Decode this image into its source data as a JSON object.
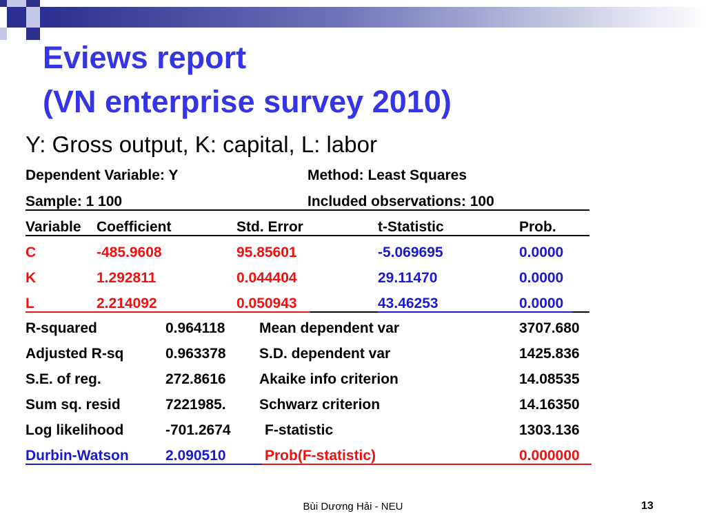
{
  "header": {
    "title_line1": "Eviews report",
    "title_line2": "(VN enterprise survey 2010)",
    "colors": {
      "title": "#3535e6",
      "bar_dark": "#2b2f8f",
      "square_light": "#c5c8e6"
    }
  },
  "subtitle": "Y: Gross output, K: capital, L: labor",
  "info": {
    "dependent_variable": "Dependent Variable: Y",
    "method": "Method: Least Squares",
    "sample": "Sample: 1 100",
    "included": "Included observations: 100"
  },
  "coef_table": {
    "headers": [
      "Variable",
      "Coefficient",
      "Std. Error",
      "t-Statistic",
      "Prob."
    ],
    "rows": [
      [
        "C",
        "-485.9608",
        "95.85601",
        "-5.069695",
        "0.0000"
      ],
      [
        "K",
        "1.292811",
        "0.044404",
        "29.11470",
        "0.0000"
      ],
      [
        "L",
        "2.214092",
        "0.050943",
        "43.46253",
        "0.0000"
      ]
    ],
    "row_color": "#ee1111"
  },
  "stats": [
    {
      "label": "R-squared",
      "value": "0.964118",
      "label2": "Mean dependent var",
      "value2": "3707.680"
    },
    {
      "label": "Adjusted R-sq",
      "value": "0.963378",
      "label2": "S.D. dependent var",
      "value2": "1425.836"
    },
    {
      "label": "S.E. of reg.",
      "value": "272.8616",
      "label2": "Akaike info criterion",
      "value2": "14.08535"
    },
    {
      "label": "Sum sq. resid",
      "value": "7221985.",
      "label2": "Schwarz criterion",
      "value2": "14.16350"
    },
    {
      "label": "Log likelihood",
      "value": "-701.2674",
      "label2": "F-statistic",
      "value2": "1303.136"
    },
    {
      "label": "Durbin-Watson",
      "value": "2.090510",
      "label2": "Prob(F-statistic)",
      "value2": "0.000000"
    }
  ],
  "footer": {
    "author": "Bùi Dương Hải - NEU",
    "page_number": "13"
  }
}
